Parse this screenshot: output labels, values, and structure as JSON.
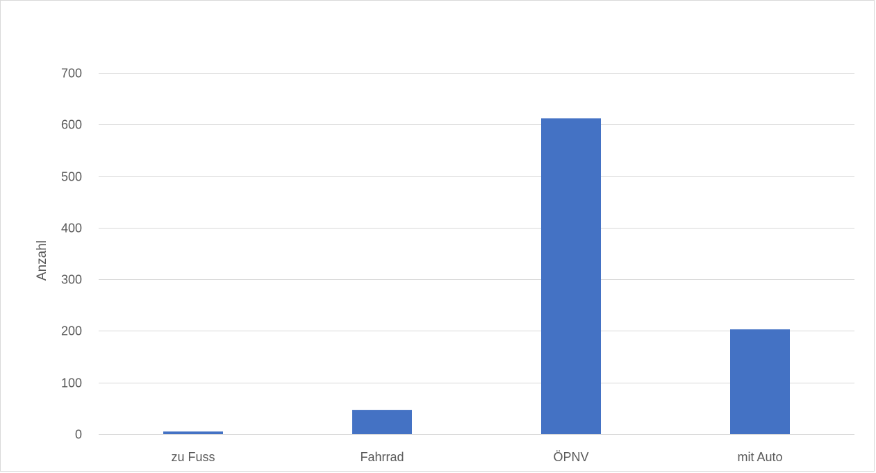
{
  "chart_data": {
    "type": "bar",
    "title": "",
    "xlabel": "",
    "ylabel": "Anzahl",
    "categories": [
      "zu Fuss",
      "Fahrrad",
      "ÖPNV",
      "mit Auto"
    ],
    "values": [
      5,
      47,
      612,
      203
    ],
    "ylim": [
      0,
      700
    ],
    "yticks": [
      0,
      100,
      200,
      300,
      400,
      500,
      600,
      700
    ],
    "ytick_labels": [
      "0",
      "100",
      "200",
      "300",
      "400",
      "500",
      "600",
      "700"
    ],
    "grid": true,
    "legend": "none",
    "colors": {
      "bar": "#4472C4",
      "grid": "#d9d9d9",
      "axis": "#d9d9d9",
      "text": "#595959",
      "frame": "#d9d9d9"
    }
  }
}
